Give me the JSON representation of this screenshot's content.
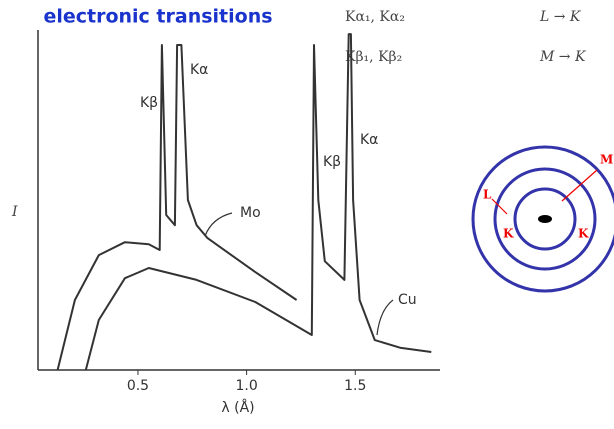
{
  "chart_data": {
    "type": "line",
    "title": "electronic transitions",
    "xlabel": "λ (Å)",
    "ylabel": "I",
    "xlim": [
      0.04,
      1.89
    ],
    "ylim": [
      0,
      100
    ],
    "xticks": [
      0.5,
      {
        "value": 1.0,
        "label": "1.0"
      },
      1.5
    ],
    "annotations": [
      "Kβ",
      "Kα",
      "Mo",
      "Kβ",
      "Kα",
      "Cu"
    ],
    "series": [
      {
        "name": "Mo",
        "color": "#333333",
        "x": [
          0.13,
          0.21,
          0.32,
          0.44,
          0.55,
          0.6,
          0.61,
          0.63,
          0.67,
          0.68,
          0.7,
          0.73,
          0.77,
          0.82,
          1.04,
          1.23
        ],
        "values": [
          0,
          20.6,
          33.8,
          37.6,
          37,
          35.3,
          95.6,
          45.6,
          42.6,
          95.6,
          95.6,
          50,
          42.6,
          38.8,
          28.8,
          20.6
        ]
      },
      {
        "name": "Cu",
        "color": "#333333",
        "x": [
          0.26,
          0.32,
          0.44,
          0.55,
          0.77,
          1.04,
          1.3,
          1.31,
          1.33,
          1.36,
          1.45,
          1.47,
          1.48,
          1.49,
          1.52,
          1.59,
          1.71,
          1.85
        ],
        "values": [
          0,
          14.7,
          27,
          30,
          26.5,
          20,
          10.3,
          95.6,
          50,
          32,
          26.5,
          98.8,
          98.8,
          50,
          20.6,
          8.8,
          6.5,
          5.3
        ]
      }
    ]
  },
  "transitions": [
    [
      "Kα₁, Kα₂",
      "L → K"
    ],
    [
      "Kβ₁, Kβ₂",
      "M → K"
    ]
  ],
  "diagram": {
    "labels": [
      "M",
      "L",
      "K",
      "K"
    ]
  }
}
